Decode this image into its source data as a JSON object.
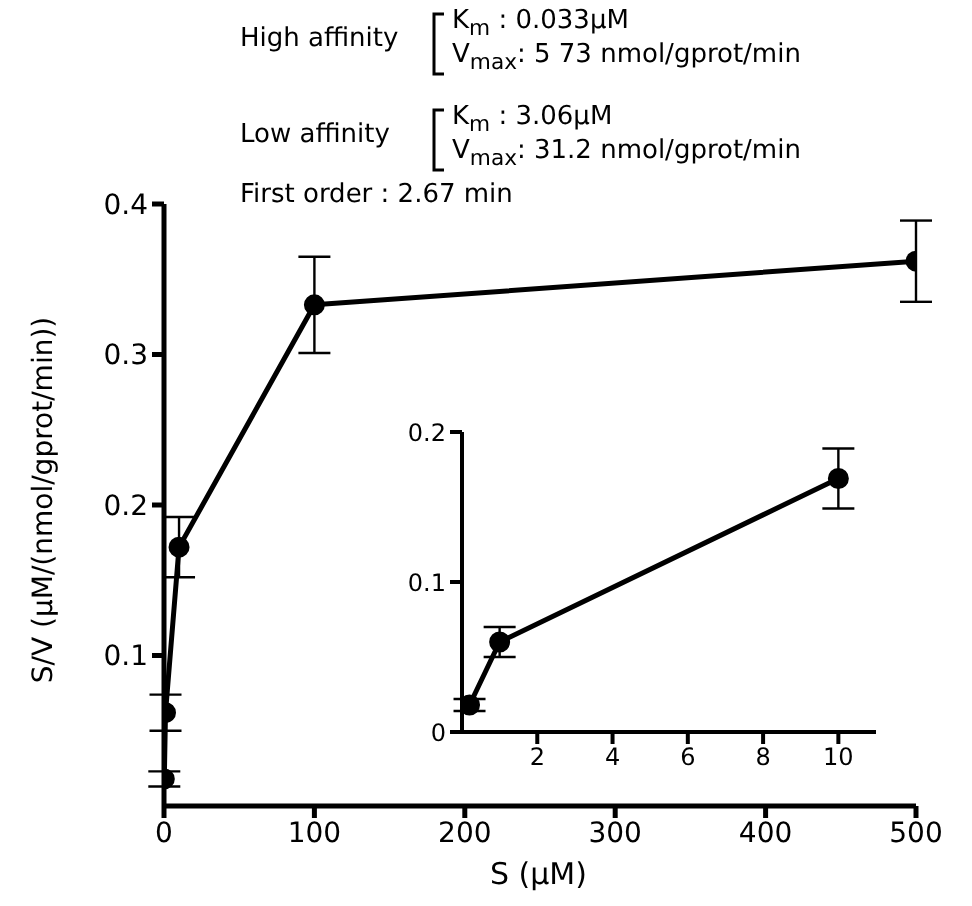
{
  "chart_data": [
    {
      "type": "line",
      "xlabel": "S (μM)",
      "ylabel": "S/V (μM/(nmol/gprot/min))",
      "x": [
        0.2,
        1,
        10,
        100,
        500
      ],
      "series": [
        {
          "color": "#000000",
          "values": [
            0.018,
            0.062,
            0.172,
            0.333,
            0.362
          ],
          "errors": [
            0.005,
            0.012,
            0.02,
            0.032,
            0.027
          ]
        }
      ],
      "xlim": [
        0,
        500
      ],
      "xticks": [
        0,
        100,
        200,
        300,
        400,
        500
      ],
      "ylim": [
        0,
        0.4
      ],
      "yticks": [
        0.1,
        0.2,
        0.3,
        0.4
      ],
      "marker": "circle",
      "line_style": "solid",
      "grid": false,
      "legend": false,
      "annotations": [
        "High affinity",
        "K$_{m}$ : 0.033μM",
        "V$_{max}$: 5 73 nmol/gprot/min",
        "Low affinity",
        "K$_{m}$ : 3.06μM",
        "V$_{max}$: 31.2 nmol/gprot/min",
        "First order : 2.67 min"
      ]
    },
    {
      "type": "line",
      "x": [
        0.2,
        1,
        10
      ],
      "series": [
        {
          "color": "#000000",
          "values": [
            0.018,
            0.06,
            0.169
          ],
          "errors": [
            0.004,
            0.01,
            0.02
          ]
        }
      ],
      "xlim": [
        0,
        11
      ],
      "xticks": [
        2,
        4,
        6,
        8,
        10
      ],
      "ylim": [
        0,
        0.2
      ],
      "yticks": [
        0,
        0.1,
        0.2
      ],
      "marker": "circle",
      "line_style": "solid",
      "grid": false,
      "legend": false
    }
  ]
}
